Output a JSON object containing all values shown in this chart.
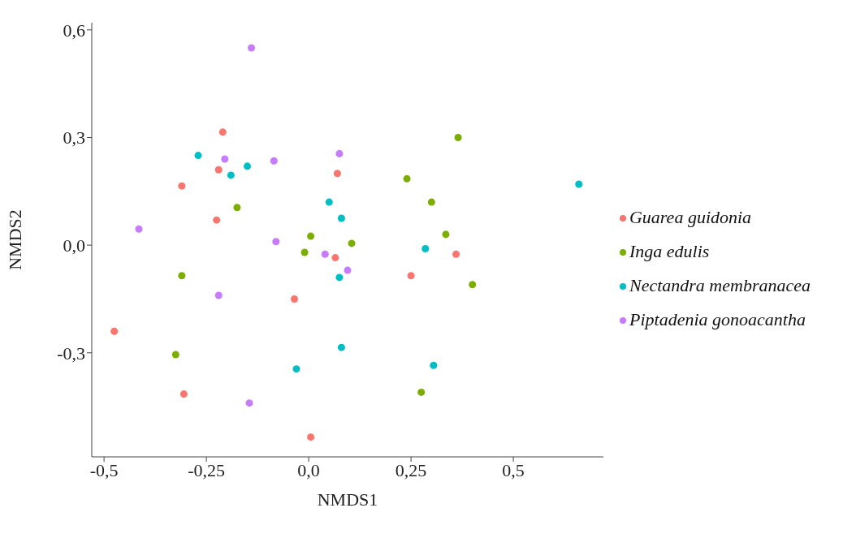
{
  "chart_data": {
    "type": "scatter",
    "xlabel": "NMDS1",
    "ylabel": "NMDS2",
    "xlim": [
      -0.53,
      0.72
    ],
    "ylim": [
      -0.59,
      0.62
    ],
    "xticks": [
      {
        "value": -0.5,
        "label": "-0,5"
      },
      {
        "value": -0.25,
        "label": "-0,25"
      },
      {
        "value": 0,
        "label": "0,0"
      },
      {
        "value": 0.25,
        "label": "0,25"
      },
      {
        "value": 0.5,
        "label": "0,5"
      }
    ],
    "yticks": [
      {
        "value": -0.3,
        "label": "-0,3"
      },
      {
        "value": 0,
        "label": "0,0"
      },
      {
        "value": 0.3,
        "label": "0,3"
      },
      {
        "value": 0.6,
        "label": "0,6"
      }
    ],
    "grid": false,
    "legend": "right",
    "marker": "circle",
    "series": [
      {
        "name": "Guarea guidonia",
        "color": "#f8766d",
        "x": [
          -0.21,
          -0.22,
          -0.31,
          -0.225,
          0.07,
          0.065,
          -0.035,
          0.25,
          0.36,
          -0.475,
          -0.305,
          0.005
        ],
        "values": [
          0.315,
          0.21,
          0.165,
          0.07,
          0.2,
          -0.035,
          -0.15,
          -0.085,
          -0.025,
          -0.24,
          -0.415,
          -0.535
        ]
      },
      {
        "name": "Inga edulis",
        "color": "#7cae00",
        "x": [
          0.365,
          0.24,
          0.3,
          -0.175,
          0.005,
          0.105,
          -0.01,
          -0.31,
          0.335,
          0.4,
          -0.325,
          0.275
        ],
        "values": [
          0.3,
          0.185,
          0.12,
          0.105,
          0.025,
          0.005,
          -0.02,
          -0.085,
          0.03,
          -0.11,
          -0.305,
          -0.41
        ]
      },
      {
        "name": "Nectandra membranacea",
        "color": "#00bfc4",
        "x": [
          -0.27,
          -0.15,
          -0.19,
          0.05,
          0.08,
          0.285,
          0.075,
          0.08,
          -0.03,
          0.305,
          0.66
        ],
        "values": [
          0.25,
          0.22,
          0.195,
          0.12,
          0.075,
          -0.01,
          -0.09,
          -0.285,
          -0.345,
          -0.335,
          0.17
        ]
      },
      {
        "name": "Piptadenia gonoacantha",
        "color": "#c77cff",
        "x": [
          -0.14,
          -0.205,
          -0.085,
          0.075,
          -0.415,
          -0.08,
          0.04,
          0.095,
          -0.22,
          -0.145
        ],
        "values": [
          0.55,
          0.24,
          0.235,
          0.255,
          0.045,
          0.01,
          -0.025,
          -0.07,
          -0.14,
          -0.44
        ]
      }
    ]
  }
}
